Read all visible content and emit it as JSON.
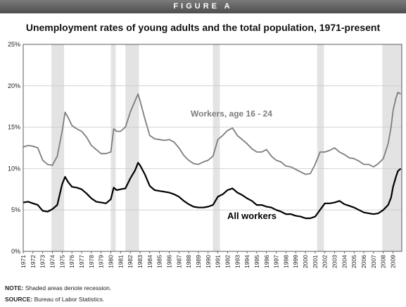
{
  "banner": "FIGURE A",
  "notes": {
    "note_label": "NOTE:",
    "note_text": "Shaded areas denote recession.",
    "source_label": "SOURCE:",
    "source_text": "Bureau of Labor Statistics."
  },
  "colors": {
    "young": "#7d7d7d",
    "all": "#000000",
    "recession": "#e3e3e3",
    "grid": "#c9c9c9"
  },
  "chart_data": {
    "type": "line",
    "title": "Unemployment rates of young adults and the total population, 1971-present",
    "xlabel": "",
    "ylabel": "",
    "xlim": [
      1971,
      2009.9
    ],
    "ylim": [
      0,
      25
    ],
    "yticks": [
      0,
      5,
      10,
      15,
      20,
      25
    ],
    "ytick_labels": [
      "0%",
      "5%",
      "10%",
      "15%",
      "20%",
      "25%"
    ],
    "xtick_labels": [
      "1971",
      "1972",
      "1973",
      "1974",
      "1975",
      "1976",
      "1977",
      "1978",
      "1979",
      "1980",
      "1981",
      "1982",
      "1983",
      "1984",
      "1985",
      "1986",
      "1987",
      "1988",
      "1989",
      "1990",
      "1991",
      "1992",
      "1993",
      "1994",
      "1995",
      "1996",
      "1997",
      "1998",
      "1999",
      "2000",
      "2001",
      "2002",
      "2003",
      "2004",
      "2005",
      "2006",
      "2007",
      "2008",
      "2009"
    ],
    "grid": "horizontal",
    "recessions": [
      [
        1973.9,
        1975.2
      ],
      [
        1980.0,
        1980.5
      ],
      [
        1981.5,
        1982.9
      ],
      [
        1990.5,
        1991.2
      ],
      [
        2001.2,
        2001.9
      ],
      [
        2007.9,
        2009.9
      ]
    ],
    "series": [
      {
        "name": "Workers, age 16 - 24",
        "x": [
          1971.0,
          1971.5,
          1972.0,
          1972.5,
          1973.0,
          1973.5,
          1974.0,
          1974.5,
          1975.0,
          1975.3,
          1975.6,
          1976.0,
          1976.5,
          1977.0,
          1977.5,
          1978.0,
          1978.5,
          1979.0,
          1979.5,
          1980.0,
          1980.3,
          1980.6,
          1981.0,
          1981.5,
          1982.0,
          1982.5,
          1982.8,
          1983.0,
          1983.5,
          1984.0,
          1984.5,
          1985.0,
          1985.5,
          1986.0,
          1986.5,
          1987.0,
          1987.5,
          1988.0,
          1988.5,
          1989.0,
          1989.5,
          1990.0,
          1990.5,
          1991.0,
          1991.5,
          1992.0,
          1992.5,
          1993.0,
          1993.5,
          1994.0,
          1994.5,
          1995.0,
          1995.5,
          1996.0,
          1996.5,
          1997.0,
          1997.5,
          1998.0,
          1998.5,
          1999.0,
          1999.5,
          2000.0,
          2000.5,
          2001.0,
          2001.5,
          2002.0,
          2002.5,
          2003.0,
          2003.5,
          2004.0,
          2004.5,
          2005.0,
          2005.5,
          2006.0,
          2006.5,
          2007.0,
          2007.5,
          2008.0,
          2008.5,
          2008.8,
          2009.0,
          2009.3,
          2009.5,
          2009.8
        ],
        "values": [
          12.6,
          12.8,
          12.7,
          12.5,
          11.0,
          10.5,
          10.4,
          11.5,
          14.5,
          16.8,
          16.2,
          15.2,
          14.8,
          14.5,
          13.8,
          12.8,
          12.3,
          11.8,
          11.8,
          12.0,
          14.8,
          14.5,
          14.5,
          15.0,
          16.8,
          18.2,
          19.0,
          18.2,
          16.0,
          14.0,
          13.6,
          13.5,
          13.4,
          13.5,
          13.2,
          12.5,
          11.6,
          11.0,
          10.6,
          10.5,
          10.8,
          11.0,
          11.5,
          13.5,
          14.0,
          14.6,
          14.9,
          14.0,
          13.5,
          13.0,
          12.4,
          12.0,
          12.0,
          12.3,
          11.5,
          11.0,
          10.8,
          10.3,
          10.2,
          9.9,
          9.6,
          9.3,
          9.4,
          10.5,
          12.0,
          12.0,
          12.2,
          12.5,
          12.0,
          11.7,
          11.3,
          11.2,
          10.9,
          10.5,
          10.5,
          10.2,
          10.6,
          11.2,
          13.0,
          15.0,
          17.0,
          18.5,
          19.2,
          19.0
        ]
      },
      {
        "name": "All workers",
        "x": [
          1971.0,
          1971.5,
          1972.0,
          1972.5,
          1973.0,
          1973.5,
          1974.0,
          1974.5,
          1975.0,
          1975.3,
          1975.6,
          1976.0,
          1976.5,
          1977.0,
          1977.5,
          1978.0,
          1978.5,
          1979.0,
          1979.5,
          1980.0,
          1980.3,
          1980.6,
          1981.0,
          1981.5,
          1982.0,
          1982.5,
          1982.8,
          1983.0,
          1983.5,
          1984.0,
          1984.5,
          1985.0,
          1985.5,
          1986.0,
          1986.5,
          1987.0,
          1987.5,
          1988.0,
          1988.5,
          1989.0,
          1989.5,
          1990.0,
          1990.5,
          1991.0,
          1991.5,
          1992.0,
          1992.5,
          1993.0,
          1993.5,
          1994.0,
          1994.5,
          1995.0,
          1995.5,
          1996.0,
          1996.5,
          1997.0,
          1997.5,
          1998.0,
          1998.5,
          1999.0,
          1999.5,
          2000.0,
          2000.5,
          2001.0,
          2001.5,
          2002.0,
          2002.5,
          2003.0,
          2003.5,
          2004.0,
          2004.5,
          2005.0,
          2005.5,
          2006.0,
          2006.5,
          2007.0,
          2007.5,
          2008.0,
          2008.5,
          2008.8,
          2009.0,
          2009.3,
          2009.5,
          2009.8
        ],
        "values": [
          5.9,
          6.0,
          5.8,
          5.6,
          4.9,
          4.8,
          5.1,
          5.6,
          8.1,
          9.0,
          8.4,
          7.8,
          7.7,
          7.5,
          7.0,
          6.4,
          6.0,
          5.9,
          5.8,
          6.3,
          7.7,
          7.4,
          7.5,
          7.6,
          8.8,
          9.8,
          10.7,
          10.4,
          9.3,
          7.9,
          7.4,
          7.3,
          7.2,
          7.1,
          6.9,
          6.6,
          6.1,
          5.7,
          5.4,
          5.3,
          5.3,
          5.4,
          5.6,
          6.6,
          6.9,
          7.4,
          7.6,
          7.1,
          6.8,
          6.4,
          6.1,
          5.6,
          5.6,
          5.4,
          5.3,
          5.0,
          4.8,
          4.5,
          4.5,
          4.3,
          4.2,
          4.0,
          4.0,
          4.2,
          5.0,
          5.8,
          5.8,
          5.9,
          6.1,
          5.7,
          5.5,
          5.3,
          5.0,
          4.7,
          4.6,
          4.5,
          4.6,
          5.0,
          5.6,
          6.5,
          7.8,
          9.0,
          9.7,
          10.0
        ]
      }
    ],
    "annotations": [
      {
        "text": "Workers, age 16 - 24",
        "x": 1992.4,
        "y": 16.3,
        "series": 0
      },
      {
        "text": "All workers",
        "x": 1994.5,
        "y": 3.9,
        "series": 1
      }
    ]
  }
}
